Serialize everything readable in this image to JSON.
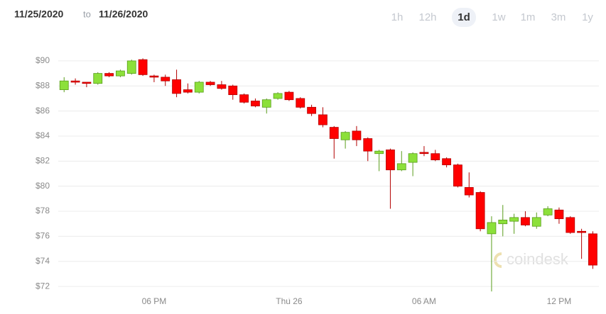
{
  "header": {
    "from": "11/25/2020",
    "separator": "to",
    "to": "11/26/2020"
  },
  "ranges": [
    "1h",
    "12h",
    "1d",
    "1w",
    "1m",
    "3m",
    "1y"
  ],
  "selected_range": 2,
  "watermark": "coindesk",
  "chart_data": {
    "type": "candlestick",
    "up_color": "#8ce03a",
    "down_color": "#ff0000",
    "grid": true,
    "x": [
      14,
      14.5,
      15,
      15.5,
      16,
      16.5,
      17,
      17.5,
      18,
      18.5,
      19,
      19.5,
      20,
      20.5,
      21,
      21.5,
      22,
      22.5,
      23,
      23.5,
      24,
      24.5,
      25,
      25.5,
      26,
      26.5,
      27,
      27.5,
      28,
      28.5,
      29,
      29.5,
      30,
      30.5,
      31,
      31.5,
      32,
      32.5,
      33,
      33.5,
      34,
      34.5,
      35,
      35.5,
      36,
      36.5,
      37,
      37.5
    ],
    "open": [
      87.7,
      88.4,
      88.3,
      88.2,
      89.0,
      88.8,
      89.0,
      90.1,
      88.8,
      88.7,
      88.5,
      87.7,
      87.5,
      88.3,
      88.1,
      88.0,
      87.3,
      86.8,
      86.3,
      87.0,
      87.5,
      87.0,
      86.3,
      85.7,
      84.7,
      83.7,
      84.4,
      83.8,
      82.6,
      82.9,
      81.3,
      81.9,
      82.7,
      82.6,
      82.2,
      81.7,
      79.9,
      79.5,
      76.2,
      77.0,
      77.2,
      77.5,
      76.8,
      77.7,
      78.1,
      77.5,
      76.4,
      76.2
    ],
    "high": [
      88.7,
      88.6,
      88.3,
      89.1,
      89.1,
      89.3,
      90.1,
      90.2,
      88.9,
      88.9,
      89.3,
      88.2,
      88.4,
      88.4,
      88.4,
      88.1,
      87.4,
      87.0,
      87.0,
      87.5,
      87.6,
      87.1,
      86.5,
      86.3,
      84.8,
      84.4,
      84.8,
      83.9,
      82.9,
      83.0,
      82.8,
      82.7,
      83.2,
      82.9,
      82.3,
      81.8,
      81.1,
      79.6,
      77.6,
      78.5,
      77.8,
      78.0,
      77.9,
      78.4,
      78.3,
      77.6,
      76.6,
      76.4
    ],
    "low": [
      87.5,
      88.1,
      87.9,
      88.1,
      88.7,
      88.7,
      88.9,
      88.8,
      88.3,
      88.0,
      87.1,
      87.4,
      87.4,
      88.0,
      87.7,
      86.9,
      86.6,
      86.3,
      85.8,
      86.9,
      86.8,
      86.2,
      85.6,
      84.7,
      82.2,
      83.0,
      83.2,
      82.0,
      81.2,
      78.2,
      81.2,
      80.8,
      82.4,
      82.0,
      81.5,
      79.9,
      79.1,
      76.4,
      71.6,
      76.0,
      76.2,
      76.8,
      76.6,
      77.6,
      77.0,
      76.2,
      74.2,
      73.4
    ],
    "close": [
      88.4,
      88.3,
      88.2,
      89.0,
      88.8,
      89.2,
      90.0,
      88.9,
      88.7,
      88.4,
      87.4,
      87.5,
      88.3,
      88.1,
      87.8,
      87.3,
      86.7,
      86.4,
      86.9,
      87.4,
      86.9,
      86.3,
      85.8,
      84.9,
      83.8,
      84.3,
      83.7,
      82.8,
      82.8,
      81.3,
      81.8,
      82.6,
      82.6,
      82.1,
      81.7,
      80.0,
      79.3,
      76.6,
      77.1,
      77.3,
      77.5,
      76.9,
      77.5,
      78.2,
      77.4,
      76.3,
      76.3,
      73.7
    ],
    "xlim": [
      13.74,
      37.77
    ],
    "xticks": [
      {
        "value": 18,
        "label": "06 PM"
      },
      {
        "value": 24,
        "label": "Thu 26"
      },
      {
        "value": 30,
        "label": "06 AM"
      },
      {
        "value": 36,
        "label": "12 PM"
      }
    ],
    "ylim": [
      71.1,
      90.9
    ],
    "yticks": [
      {
        "value": 72,
        "label": "$72"
      },
      {
        "value": 74,
        "label": "$74"
      },
      {
        "value": 76,
        "label": "$76"
      },
      {
        "value": 78,
        "label": "$78"
      },
      {
        "value": 80,
        "label": "$80"
      },
      {
        "value": 82,
        "label": "$82"
      },
      {
        "value": 84,
        "label": "$84"
      },
      {
        "value": 86,
        "label": "$86"
      },
      {
        "value": 88,
        "label": "$88"
      },
      {
        "value": 90,
        "label": "$90"
      }
    ]
  }
}
